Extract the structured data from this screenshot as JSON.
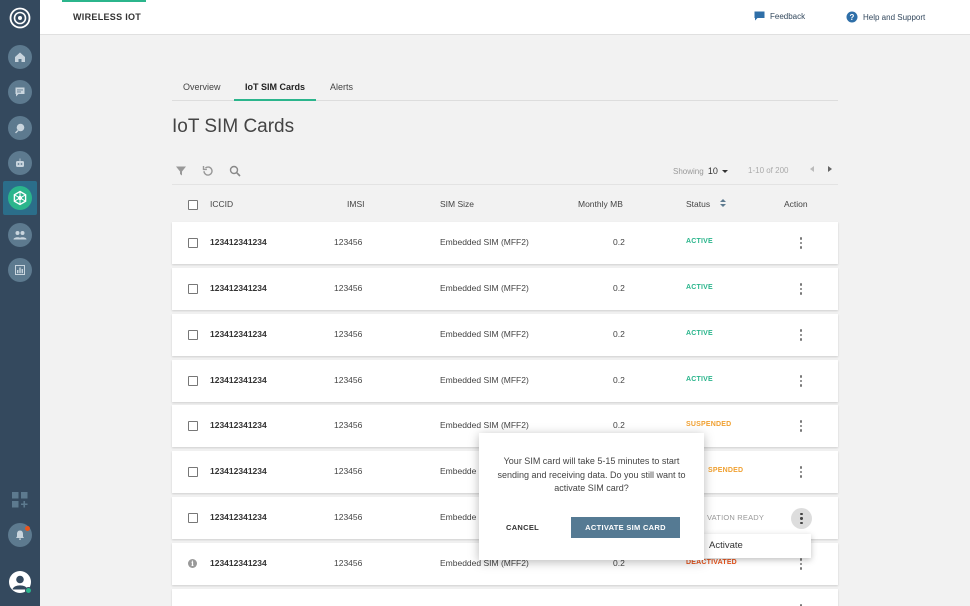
{
  "app": {
    "title": "WIRELESS IOT"
  },
  "header": {
    "feedback": "Feedback",
    "help": "Help and Support"
  },
  "tabs": [
    {
      "label": "Overview"
    },
    {
      "label": "IoT SIM Cards"
    },
    {
      "label": "Alerts"
    }
  ],
  "page": {
    "title": "IoT SIM Cards"
  },
  "toolbar": {
    "showing_label": "Showing",
    "page_size": "10",
    "range": "1-10 of 200"
  },
  "table": {
    "columns": {
      "iccid": "ICCID",
      "imsi": "IMSI",
      "sim_size": "SIM Size",
      "monthly_mb": "Monthly MB",
      "status": "Status",
      "action": "Action"
    },
    "rows": [
      {
        "iccid": "123412341234",
        "imsi": "123456",
        "sim_size": "Embedded SIM (MFF2)",
        "monthly_mb": "0.2",
        "status": "ACTIVE",
        "status_color": "#2bb58c"
      },
      {
        "iccid": "123412341234",
        "imsi": "123456",
        "sim_size": "Embedded SIM (MFF2)",
        "monthly_mb": "0.2",
        "status": "ACTIVE",
        "status_color": "#2bb58c"
      },
      {
        "iccid": "123412341234",
        "imsi": "123456",
        "sim_size": "Embedded SIM (MFF2)",
        "monthly_mb": "0.2",
        "status": "ACTIVE",
        "status_color": "#2bb58c"
      },
      {
        "iccid": "123412341234",
        "imsi": "123456",
        "sim_size": "Embedded SIM (MFF2)",
        "monthly_mb": "0.2",
        "status": "ACTIVE",
        "status_color": "#2bb58c"
      },
      {
        "iccid": "123412341234",
        "imsi": "123456",
        "sim_size": "Embedded SIM (MFF2)",
        "monthly_mb": "0.2",
        "status": "SUSPENDED",
        "status_color": "#f0a030"
      },
      {
        "iccid": "123412341234",
        "imsi": "123456",
        "sim_size": "Embedde",
        "monthly_mb": "",
        "status": "SPENDED",
        "status_color": "#f0a030"
      },
      {
        "iccid": "123412341234",
        "imsi": "123456",
        "sim_size": "Embedde",
        "monthly_mb": "",
        "status": "VATION READY",
        "status_color": "#999999"
      },
      {
        "iccid": "123412341234",
        "imsi": "123456",
        "sim_size": "Embedded SIM (MFF2)",
        "monthly_mb": "0.2",
        "status": "DEACTIVATED",
        "status_color": "#e8541c"
      }
    ]
  },
  "dropdown": {
    "activate": "Activate"
  },
  "dialog": {
    "message": "Your SIM card will take 5-15 minutes to start sending and receiving data. Do you still want to activate SIM card?",
    "cancel": "CANCEL",
    "confirm": "ACTIVATE SIM CARD"
  },
  "icons": {
    "sidebar": [
      "logo-icon",
      "home-icon",
      "chat-icon",
      "search-icon",
      "robot-icon",
      "iot-hub-icon",
      "users-icon",
      "analytics-icon",
      "add-widget-icon",
      "notifications-icon",
      "profile-icon"
    ],
    "toolbar": [
      "filter-icon",
      "refresh-icon",
      "search-icon"
    ]
  },
  "colors": {
    "accent": "#2bb58c",
    "sidebar": "#34495e",
    "primary_button": "#557a93"
  }
}
